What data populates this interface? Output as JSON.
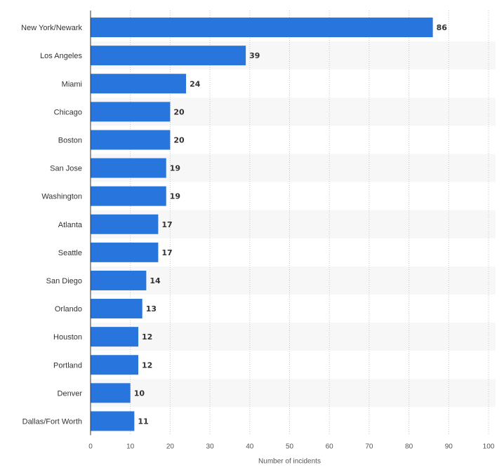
{
  "chart_data": {
    "type": "bar",
    "orientation": "horizontal",
    "categories": [
      "New York/Newark",
      "Los Angeles",
      "Miami",
      "Chicago",
      "Boston",
      "San Jose",
      "Washington",
      "Atlanta",
      "Seattle",
      "San Diego",
      "Orlando",
      "Houston",
      "Portland",
      "Denver",
      "Dallas/Fort Worth"
    ],
    "values": [
      86,
      39,
      24,
      20,
      20,
      19,
      19,
      17,
      17,
      14,
      13,
      12,
      12,
      10,
      11
    ],
    "title": "",
    "xlabel": "Number of incidents",
    "ylabel": "",
    "xlim": [
      0,
      100
    ],
    "xticks": [
      0,
      10,
      20,
      30,
      40,
      50,
      60,
      70,
      80,
      90,
      100
    ],
    "grid": "vertical dotted",
    "data_labels": true,
    "colors": {
      "bar": "#2876dd",
      "band": "#f7f7f7",
      "grid": "#c8c8c8",
      "axis": "#333333"
    }
  }
}
